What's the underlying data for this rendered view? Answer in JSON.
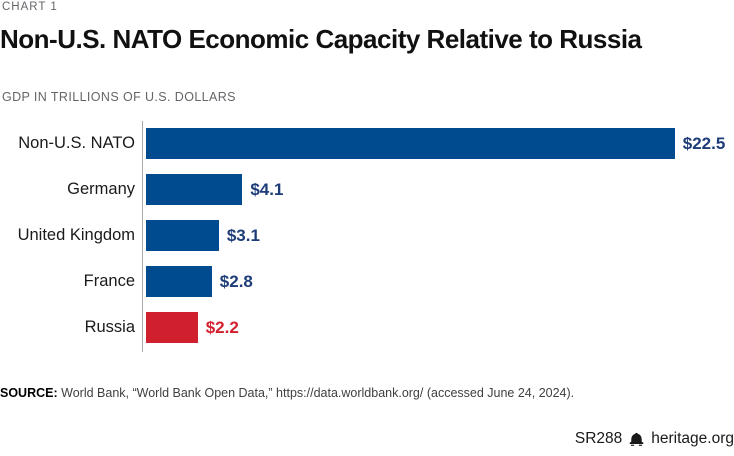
{
  "kicker": "CHART 1",
  "title": "Non-U.S. NATO Economic Capacity Relative to Russia",
  "subtitle": "GDP IN TRILLIONS OF U.S. DOLLARS",
  "chart_data": {
    "type": "bar",
    "orientation": "horizontal",
    "title": "Non-U.S. NATO Economic Capacity Relative to Russia",
    "units": "Trillions of U.S. dollars",
    "categories": [
      "Non-U.S. NATO",
      "Germany",
      "United Kingdom",
      "France",
      "Russia"
    ],
    "values": [
      22.5,
      4.1,
      3.1,
      2.8,
      2.2
    ],
    "value_labels": [
      "$22.5",
      "$4.1",
      "$3.1",
      "$2.8",
      "$2.2"
    ],
    "bar_colors": [
      "#004a8f",
      "#004a8f",
      "#004a8f",
      "#004a8f",
      "#d0202e"
    ],
    "value_label_colors": [
      "#1d3c78",
      "#1d3c78",
      "#1d3c78",
      "#1d3c78",
      "#d2202e"
    ],
    "xlim": [
      0,
      22.5
    ],
    "grid": false,
    "legend": false
  },
  "colors": {
    "bar_blue": "#004a8f",
    "bar_red": "#d0202e",
    "value_navy": "#1d3c78",
    "value_red": "#d2202e",
    "axis_gray": "#a7a8aa"
  },
  "source": {
    "prefix": "SOURCE:",
    "text": "World Bank, “World Bank Open Data,” https://data.worldbank.org/ (accessed June 24, 2024)."
  },
  "footer": {
    "report_id": "SR288",
    "site": "heritage.org",
    "logo_icon": "liberty-bell-icon"
  }
}
